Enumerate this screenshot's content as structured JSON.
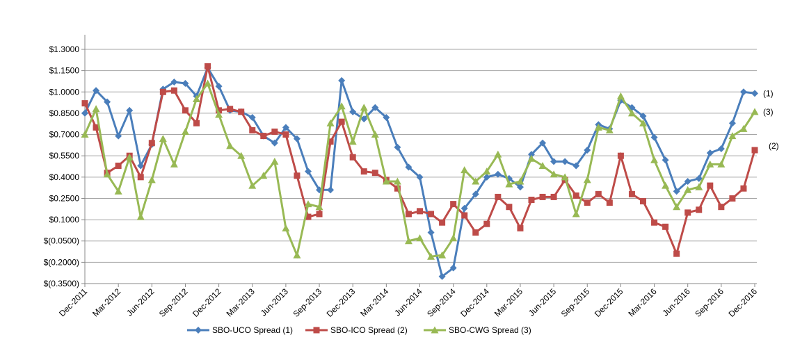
{
  "chart_data": {
    "type": "line",
    "categories": [
      "Dec-2011",
      null,
      null,
      "Mar-2012",
      null,
      null,
      "Jun-2012",
      null,
      null,
      "Sep-2012",
      null,
      null,
      "Dec-2012",
      null,
      null,
      "Mar-2013",
      null,
      null,
      "Jun-2013",
      null,
      null,
      "Sep-2013",
      null,
      null,
      "Dec-2013",
      null,
      null,
      "Mar-2014",
      null,
      null,
      "Jun-2014",
      null,
      null,
      "Sep-2014",
      null,
      null,
      "Dec-2014",
      null,
      null,
      "Mar-2015",
      null,
      null,
      "Jun-2015",
      null,
      null,
      "Sep-2015",
      null,
      null,
      "Dec-2015",
      null,
      null,
      "Mar-2016",
      null,
      null,
      "Jun-2016",
      null,
      null,
      "Sep-2016",
      null,
      null,
      "Dec-2016"
    ],
    "series": [
      {
        "name": "SBO-UCO Spread (1)",
        "color": "#4a7ebb",
        "marker": "diamond",
        "values": [
          0.85,
          1.01,
          0.93,
          0.69,
          0.87,
          0.48,
          0.63,
          1.02,
          1.07,
          1.06,
          0.97,
          1.17,
          1.04,
          0.87,
          0.86,
          0.82,
          0.69,
          0.64,
          0.75,
          0.67,
          0.44,
          0.31,
          0.31,
          1.08,
          0.86,
          0.81,
          0.89,
          0.82,
          0.61,
          0.47,
          0.4,
          0.01,
          -0.3,
          -0.24,
          0.18,
          0.28,
          0.4,
          0.42,
          0.39,
          0.33,
          0.56,
          0.64,
          0.51,
          0.51,
          0.48,
          0.59,
          0.77,
          0.74,
          0.94,
          0.89,
          0.83,
          0.68,
          0.52,
          0.3,
          0.37,
          0.39,
          0.57,
          0.6,
          0.78,
          1.0,
          0.99
        ]
      },
      {
        "name": "SBO-ICO Spread (2)",
        "color": "#be4b48",
        "marker": "square",
        "values": [
          0.92,
          0.75,
          0.43,
          0.48,
          0.55,
          0.4,
          0.64,
          1.0,
          1.01,
          0.87,
          0.78,
          1.18,
          0.87,
          0.88,
          0.86,
          0.73,
          0.69,
          0.72,
          0.7,
          0.41,
          0.12,
          0.14,
          0.65,
          0.79,
          0.54,
          0.44,
          0.43,
          0.38,
          0.32,
          0.14,
          0.16,
          0.14,
          0.08,
          0.21,
          0.13,
          0.01,
          0.07,
          0.26,
          0.19,
          0.04,
          0.24,
          0.26,
          0.26,
          0.38,
          0.27,
          0.22,
          0.28,
          0.22,
          0.55,
          0.28,
          0.23,
          0.08,
          0.05,
          -0.14,
          0.15,
          0.17,
          0.34,
          0.19,
          0.25,
          0.32,
          0.59
        ]
      },
      {
        "name": "SBO-CWG Spread (3)",
        "color": "#98b954",
        "marker": "triangle",
        "values": [
          0.7,
          0.88,
          0.42,
          0.3,
          0.54,
          0.12,
          0.38,
          0.67,
          0.49,
          0.72,
          0.95,
          1.06,
          0.84,
          0.62,
          0.55,
          0.34,
          0.41,
          0.51,
          0.04,
          -0.15,
          0.21,
          0.19,
          0.78,
          0.9,
          0.65,
          0.89,
          0.7,
          0.37,
          0.37,
          -0.05,
          -0.03,
          -0.16,
          -0.15,
          -0.03,
          0.45,
          0.37,
          0.44,
          0.56,
          0.35,
          0.37,
          0.53,
          0.48,
          0.42,
          0.4,
          0.14,
          0.38,
          0.75,
          0.73,
          0.97,
          0.85,
          0.78,
          0.52,
          0.34,
          0.19,
          0.31,
          0.33,
          0.49,
          0.49,
          0.69,
          0.74,
          0.86
        ]
      }
    ],
    "annotations": [
      "(1)",
      "(2)",
      "(3)"
    ],
    "ylim": [
      -0.35,
      1.3
    ],
    "yticks": [
      {
        "value": -0.35,
        "label": "$(0.3500)"
      },
      {
        "value": -0.2,
        "label": "$(0.2000)"
      },
      {
        "value": -0.05,
        "label": "$(0.0500)"
      },
      {
        "value": 0.1,
        "label": "$0.1000"
      },
      {
        "value": 0.25,
        "label": "$0.2500"
      },
      {
        "value": 0.4,
        "label": "$0.4000"
      },
      {
        "value": 0.55,
        "label": "$0.5500"
      },
      {
        "value": 0.7,
        "label": "$0.7000"
      },
      {
        "value": 0.85,
        "label": "$0.8500"
      },
      {
        "value": 1.0,
        "label": "$1.0000"
      },
      {
        "value": 1.15,
        "label": "$1.1500"
      },
      {
        "value": 1.3,
        "label": "$1.3000"
      }
    ],
    "grid": true,
    "legend": "bottom"
  }
}
